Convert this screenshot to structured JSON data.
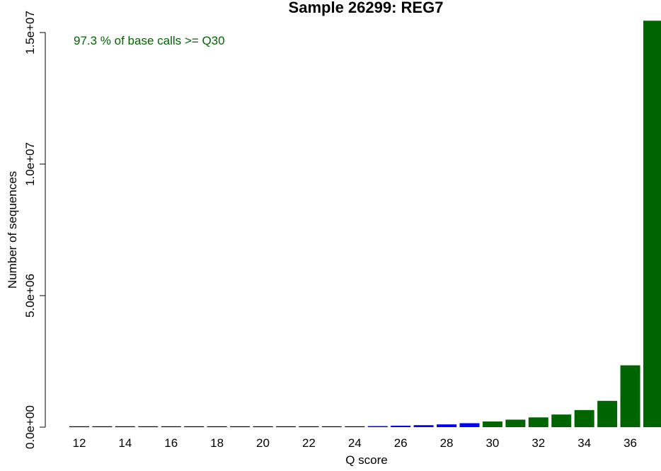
{
  "chart_data": {
    "type": "bar",
    "title": "Sample 26299: REG7",
    "xlabel": "Q score",
    "ylabel": "Number of sequences",
    "annotation": "97.3 % of base calls >= Q30",
    "ylim": [
      0,
      15000000
    ],
    "y_ticks": [
      {
        "value": 0,
        "label": "0.0e+00"
      },
      {
        "value": 5000000,
        "label": "5.0e+06"
      },
      {
        "value": 10000000,
        "label": "1.0e+07"
      },
      {
        "value": 15000000,
        "label": "1.5e+07"
      }
    ],
    "x_tick_labels": [
      "12",
      "14",
      "16",
      "18",
      "20",
      "22",
      "24",
      "26",
      "28",
      "30",
      "32",
      "34",
      "36"
    ],
    "categories": [
      12,
      13,
      14,
      15,
      16,
      17,
      18,
      19,
      20,
      21,
      22,
      23,
      24,
      25,
      26,
      27,
      28,
      29,
      30,
      31,
      32,
      33,
      34,
      35,
      36,
      37
    ],
    "values": [
      5000,
      6000,
      8000,
      10000,
      12000,
      14000,
      16000,
      18000,
      20000,
      22000,
      25000,
      28000,
      32000,
      40000,
      55000,
      75000,
      105000,
      150000,
      215000,
      285000,
      370000,
      480000,
      650000,
      1000000,
      2350000,
      15450000
    ],
    "colors": {
      "low": "#000000",
      "mid": "#0000ff",
      "high": "#006400",
      "annotation": "#006400"
    },
    "color_thresholds": {
      "mid_from": 25,
      "high_from": 30
    },
    "grid": false,
    "legend": "none"
  }
}
